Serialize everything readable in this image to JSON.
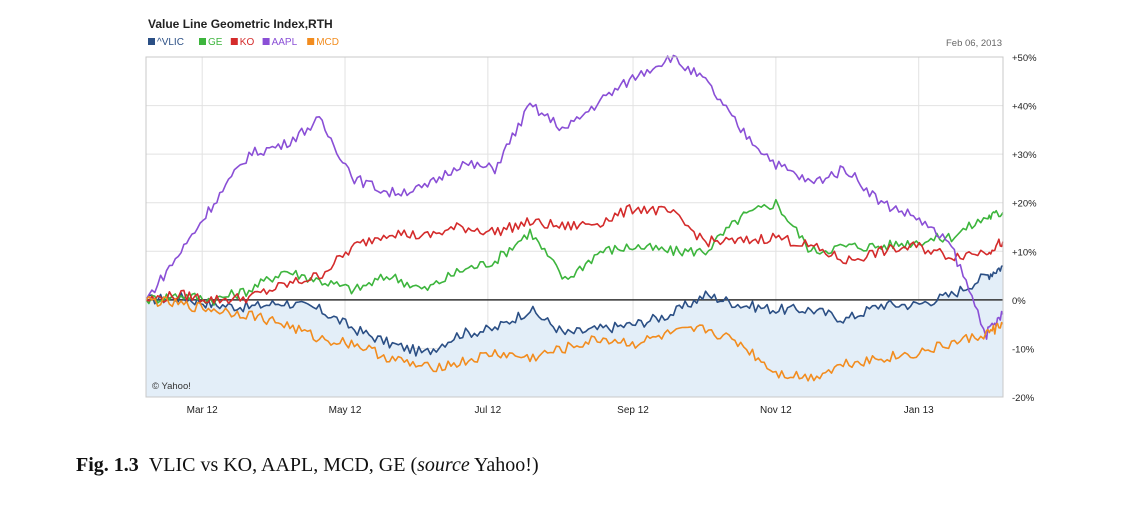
{
  "chart_data": {
    "type": "line",
    "title": "Value Line Geometric Index,RTH",
    "date": "Feb 06, 2013",
    "watermark": "© Yahoo!",
    "x_ticks": [
      "Mar 12",
      "May 12",
      "Jul 12",
      "Sep 12",
      "Nov 12",
      "Jan 13"
    ],
    "y_ticks": [
      "+50%",
      "+40%",
      "+30%",
      "+20%",
      "+10%",
      "0%",
      "-10%",
      "-20%"
    ],
    "ylim": [
      -20,
      50
    ],
    "grid": true,
    "legend_position": "top-left",
    "x": [
      "2012-02-06",
      "2012-02-21",
      "2012-03-06",
      "2012-03-21",
      "2012-04-05",
      "2012-04-20",
      "2012-05-05",
      "2012-05-20",
      "2012-06-04",
      "2012-06-19",
      "2012-07-04",
      "2012-07-19",
      "2012-08-03",
      "2012-08-18",
      "2012-09-02",
      "2012-09-17",
      "2012-10-02",
      "2012-10-17",
      "2012-11-01",
      "2012-11-16",
      "2012-12-01",
      "2012-12-16",
      "2012-12-31",
      "2013-01-15",
      "2013-01-30",
      "2013-02-06"
    ],
    "series": [
      {
        "name": "^VLIC",
        "color": "#2b4f85",
        "values": [
          0,
          0.5,
          -1,
          -1.5,
          -0.5,
          -2,
          -6,
          -9,
          -11,
          -7,
          -6,
          -2,
          -7,
          -6,
          -5,
          -3,
          1,
          -1,
          -2,
          -2,
          -4,
          -1,
          -1,
          1,
          5,
          7
        ]
      },
      {
        "name": "GE",
        "color": "#3db53d",
        "values": [
          0,
          1,
          0,
          2,
          6,
          4,
          2,
          5,
          2,
          6,
          8,
          14,
          4,
          10,
          11,
          10,
          10,
          17,
          20,
          10,
          11,
          11,
          12,
          13,
          17,
          18
        ]
      },
      {
        "name": "KO",
        "color": "#d42b2b",
        "values": [
          0,
          1,
          0,
          0.5,
          3,
          5,
          11,
          14,
          13,
          15,
          14,
          16,
          15,
          16,
          19,
          18,
          12,
          12,
          13,
          11,
          8,
          10,
          11,
          9,
          10,
          12
        ]
      },
      {
        "name": "AAPL",
        "color": "#8a4fd6",
        "values": [
          0,
          10,
          20,
          30,
          32,
          37,
          25,
          22,
          23,
          28,
          27,
          40,
          35,
          41,
          46,
          50,
          45,
          35,
          28,
          24,
          27,
          20,
          17,
          11,
          -7,
          -3
        ]
      },
      {
        "name": "MCD",
        "color": "#f28c1e",
        "values": [
          0,
          -1,
          -2,
          -3,
          -5,
          -8,
          -9,
          -12,
          -14,
          -13,
          -11,
          -12,
          -10,
          -8,
          -9,
          -7,
          -6,
          -9,
          -15,
          -16,
          -13,
          -12,
          -11,
          -9,
          -7,
          -5
        ]
      }
    ]
  },
  "caption": {
    "label": "Fig. 1.3",
    "text_before": "VLIC vs KO, AAPL, MCD, GE (",
    "source_word": "source",
    "text_after": " Yahoo!)"
  }
}
